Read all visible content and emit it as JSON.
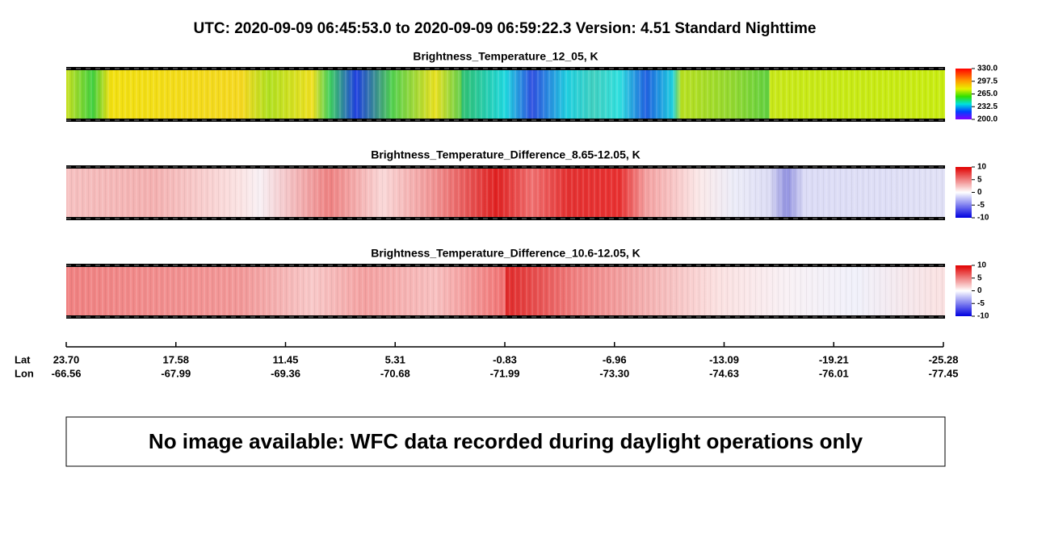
{
  "title": "UTC:  2020-09-09   06:45:53.0  to  2020-09-09   06:59:22.3    Version: 4.51  Standard Nighttime",
  "panels": [
    {
      "title": "Brightness_Temperature_12_05, K",
      "colorbar_ticks": [
        {
          "value": 330,
          "label": "330.0"
        },
        {
          "value": 297.5,
          "label": "297.5"
        },
        {
          "value": 265,
          "label": "265.0"
        },
        {
          "value": 232.5,
          "label": "232.5"
        },
        {
          "value": 200,
          "label": "200.0"
        }
      ]
    },
    {
      "title": "Brightness_Temperature_Difference_8.65-12.05, K",
      "colorbar_ticks": [
        10,
        5,
        0,
        -5,
        -10
      ]
    },
    {
      "title": "Brightness_Temperature_Difference_10.6-12.05, K",
      "colorbar_ticks": [
        10,
        5,
        0,
        -5,
        -10
      ]
    }
  ],
  "axis": {
    "lat_label": "Lat",
    "lon_label": "Lon",
    "lat": [
      "23.70",
      "17.58",
      "11.45",
      "5.31",
      "-0.83",
      "-6.96",
      "-13.09",
      "-19.21",
      "-25.28"
    ],
    "lon": [
      "-66.56",
      "-67.99",
      "-69.36",
      "-70.68",
      "-71.99",
      "-73.30",
      "-74.63",
      "-76.01",
      "-77.45"
    ]
  },
  "notice": "No image available: WFC data recorded during daylight operations only"
}
